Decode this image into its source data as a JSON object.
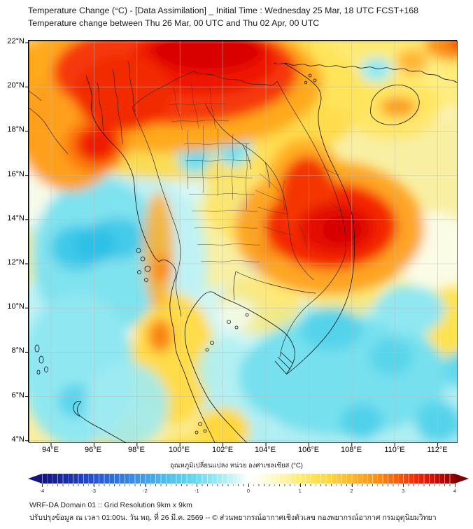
{
  "header": {
    "title_line1": "Temperature Change (°C) - [Data Assimilation] _ Initial Time : Wednesday 25 Mar, 18 UTC FCST+168",
    "title_line2": "Temperature change between Thu 26 Mar, 00 UTC and Thu 02 Apr, 00 UTC"
  },
  "map": {
    "lat_ticks": [
      "22°N",
      "20°N",
      "18°N",
      "16°N",
      "14°N",
      "12°N",
      "10°N",
      "8°N",
      "6°N",
      "4°N"
    ],
    "lon_ticks": [
      "94°E",
      "96°E",
      "98°E",
      "100°E",
      "102°E",
      "104°E",
      "106°E",
      "108°E",
      "110°E",
      "112°E"
    ]
  },
  "colorbar": {
    "label": "อุณหภูมิเปลี่ยนแปลง หน่วย องศาเซลเซียส (°C)",
    "ticks": [
      "-4",
      "-3",
      "-2",
      "-1",
      "0",
      "1",
      "2",
      "3",
      "4"
    ],
    "range": [
      -4,
      4
    ],
    "min_color": "#14147e",
    "zero_color": "#ffffff",
    "max_color": "#8f0000"
  },
  "map_content": {
    "type": "filled-contour temperature-change map",
    "strong_warming_regions": [
      "northern Thailand / Myanmar (18-22N, 94-103E)",
      "southern Laos / Cambodia / central Vietnam (12-15N, 104-108E)",
      "upper southern Thailand peninsula (~8.5N, 99E)",
      "Hainan island (~19N, 110E)"
    ],
    "cooling_regions": [
      "Andaman Sea (8-14N, 93-97E)",
      "central Thailand (15-18N, 99-101E)",
      "Gulf of Thailand and South China Sea (4-10N, 100-112E)",
      "Gulf of Tonkin spot (~20.8N, 107.8E)"
    ]
  },
  "footer": {
    "line1": "WRF-DA Domain 01 :: Grid Resolution 9km x 9km",
    "line2": "ปรับปรุงข้อมูล ณ เวลา 01:00น. วัน พฤ. ที่ 26 มี.ค. 2569 -- © ส่วนพยากรณ์อากาศเชิงตัวเลข กองพยากรณ์อากาศ กรมอุตุนิยมวิทยา"
  }
}
